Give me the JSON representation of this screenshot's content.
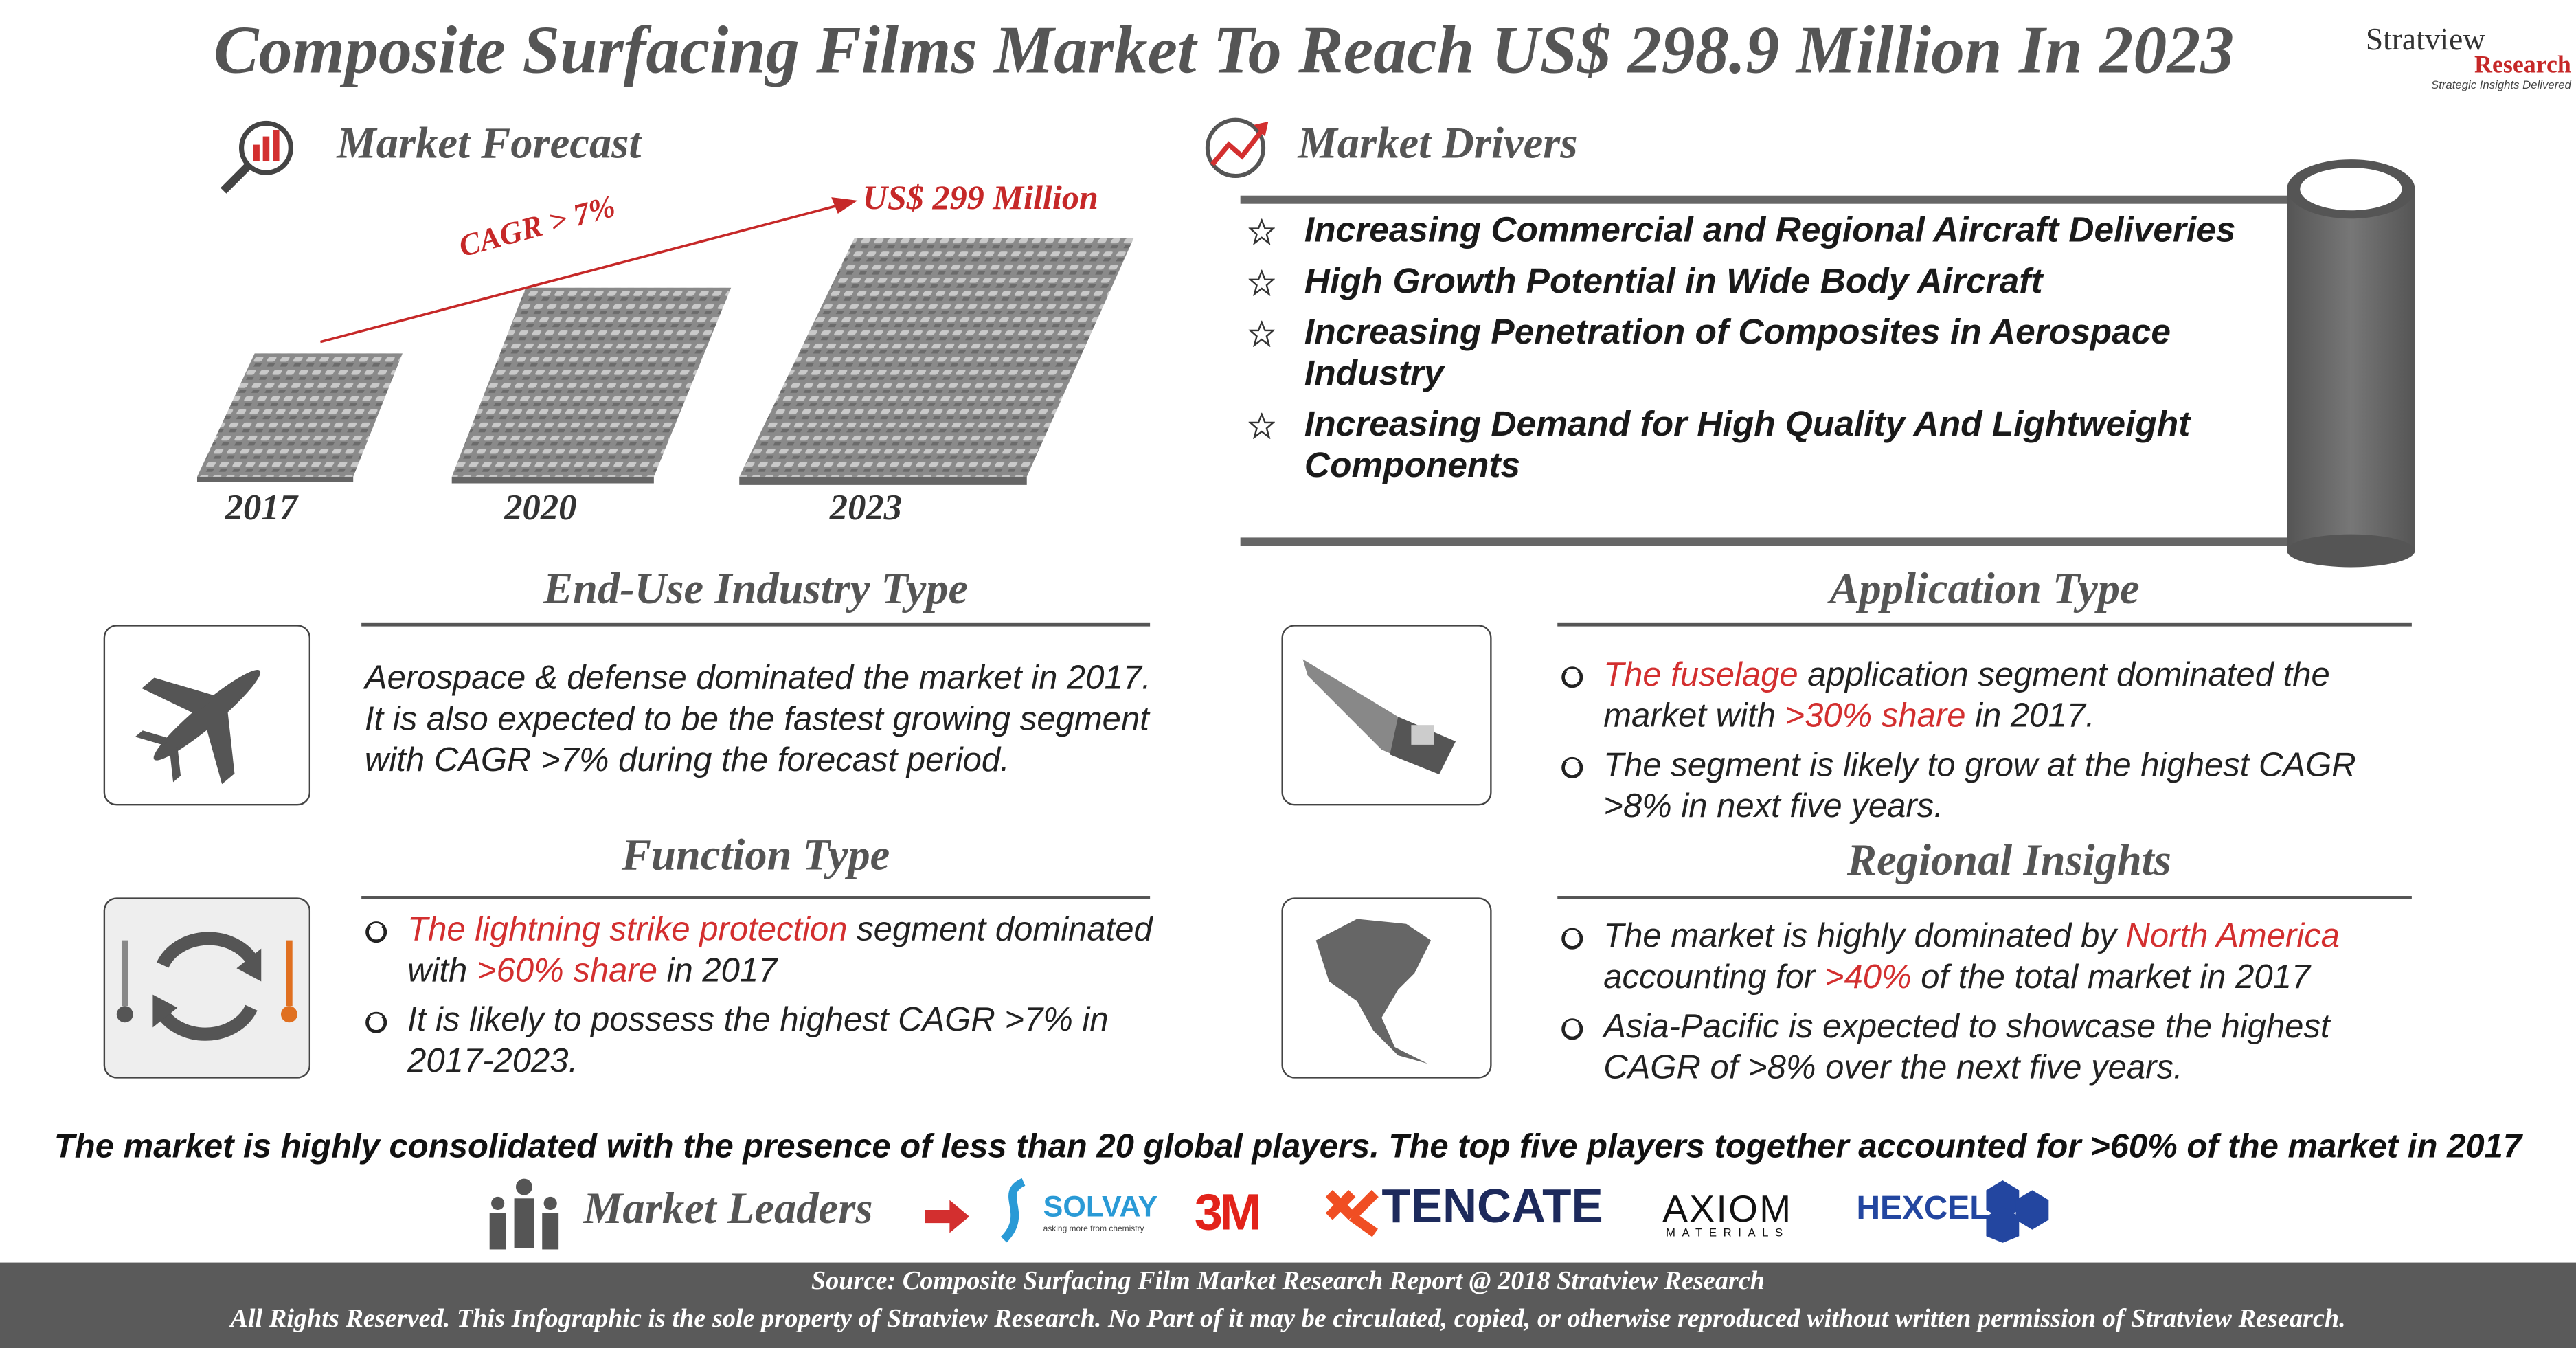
{
  "header": {
    "title": "Composite Surfacing Films Market To Reach US$ 298.9 Million In 2023",
    "logo": {
      "name": "Stratview",
      "sub": "Research",
      "tagline": "Strategic Insights Delivered"
    }
  },
  "forecast": {
    "heading": "Market Forecast",
    "cagr": "CAGR > 7%",
    "target": "US$ 299 Million",
    "years": [
      "2017",
      "2020",
      "2023"
    ]
  },
  "drivers": {
    "heading": "Market Drivers",
    "items": [
      "Increasing Commercial and Regional Aircraft Deliveries",
      "High Growth Potential in Wide Body Aircraft",
      "Increasing Penetration of Composites in Aerospace Industry",
      "Increasing Demand for High Quality And Lightweight Components"
    ]
  },
  "end_use": {
    "heading": "End-Use Industry Type",
    "text": "Aerospace & defense dominated the market in 2017. It is also expected to be the fastest growing segment with CAGR >7% during the forecast period."
  },
  "function": {
    "heading": "Function Type",
    "bullets": [
      [
        {
          "text": "The lightning strike protection",
          "color": "#d32f2f"
        },
        {
          "text": " segment dominated with "
        },
        {
          "text": ">60% share",
          "color": "#d32f2f"
        },
        {
          "text": " in 2017"
        }
      ],
      [
        {
          "text": "It is likely to possess the highest CAGR >7% in 2017-2023."
        }
      ]
    ]
  },
  "application": {
    "heading": "Application Type",
    "bullets": [
      [
        {
          "text": "The fuselage",
          "color": "#d32f2f"
        },
        {
          "text": " application segment dominated the market with "
        },
        {
          "text": ">30% share",
          "color": "#d32f2f"
        },
        {
          "text": " in 2017."
        }
      ],
      [
        {
          "text": "The segment is likely to grow at the highest CAGR >8% in next five years."
        }
      ]
    ]
  },
  "regional": {
    "heading": "Regional Insights",
    "bullets": [
      [
        {
          "text": "The market is highly dominated by "
        },
        {
          "text": "North America",
          "color": "#d32f2f"
        },
        {
          "text": " accounting for "
        },
        {
          "text": ">40%",
          "color": "#d32f2f"
        },
        {
          "text": " of the total market in 2017"
        }
      ],
      [
        {
          "text": "Asia-Pacific is expected to showcase the highest CAGR of >8% over the next five years."
        }
      ]
    ]
  },
  "summary": "The market is highly consolidated with the presence of less than 20 global players. The top five players together accounted for >60% of the market in 2017",
  "leaders": {
    "heading": "Market Leaders",
    "companies": [
      {
        "name": "SOLVAY",
        "tagline": "asking more from chemistry",
        "color": "#2a9ad6"
      },
      {
        "name": "3M",
        "color": "#e2231a"
      },
      {
        "name": "TENCATE",
        "color": "#1d2a5c"
      },
      {
        "name": "AXIOM",
        "tagline": "MATERIALS",
        "color": "#111111"
      },
      {
        "name": "HEXCEL",
        "color": "#2346a0"
      }
    ]
  },
  "footer": {
    "source": "Source: Composite Surfacing Film Market Research Report @ 2018 Stratview Research",
    "rights": "All Rights Reserved. This Infographic is the sole property of Stratview Research. No Part of it may be circulated, copied, or otherwise reproduced without written permission of Stratview Research."
  }
}
